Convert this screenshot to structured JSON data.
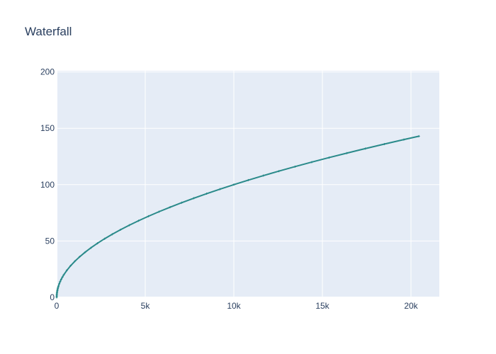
{
  "chart_data": {
    "type": "line",
    "title": "Waterfall",
    "xlabel": "",
    "ylabel": "",
    "xlim": [
      0,
      21600
    ],
    "ylim": [
      0,
      201
    ],
    "grid": true,
    "x_ticks": [
      {
        "value": 0,
        "label": "0"
      },
      {
        "value": 5000,
        "label": "5k"
      },
      {
        "value": 10000,
        "label": "10k"
      },
      {
        "value": 15000,
        "label": "15k"
      },
      {
        "value": 20000,
        "label": "20k"
      }
    ],
    "y_ticks": [
      {
        "value": 0,
        "label": "0"
      },
      {
        "value": 50,
        "label": "50"
      },
      {
        "value": 100,
        "label": "100"
      },
      {
        "value": 150,
        "label": "150"
      },
      {
        "value": 200,
        "label": "200"
      }
    ],
    "series": [
      {
        "color": "#2a8a8a",
        "marker": "cross-tick",
        "x": [
          0,
          1,
          4,
          9,
          16,
          25,
          36,
          49,
          64,
          81,
          100,
          144,
          196,
          256,
          324,
          400,
          576,
          784,
          1024,
          1296,
          1600,
          1936,
          2304,
          2704,
          3136,
          3600,
          4096,
          4624,
          5184,
          5776,
          6400,
          7056,
          7744,
          8464,
          9216,
          10000,
          10816,
          11664,
          12544,
          13456,
          14400,
          15376,
          16384,
          17424,
          18496,
          19600,
          20449
        ],
        "y": [
          0,
          1,
          2,
          3,
          4,
          5,
          6,
          7,
          8,
          9,
          10,
          12,
          14,
          16,
          18,
          20,
          24,
          28,
          32,
          36,
          40,
          44,
          48,
          52,
          56,
          60,
          64,
          68,
          72,
          76,
          80,
          84,
          88,
          92,
          96,
          100,
          104,
          108,
          112,
          116,
          120,
          124,
          128,
          132,
          136,
          140,
          143
        ]
      }
    ]
  }
}
